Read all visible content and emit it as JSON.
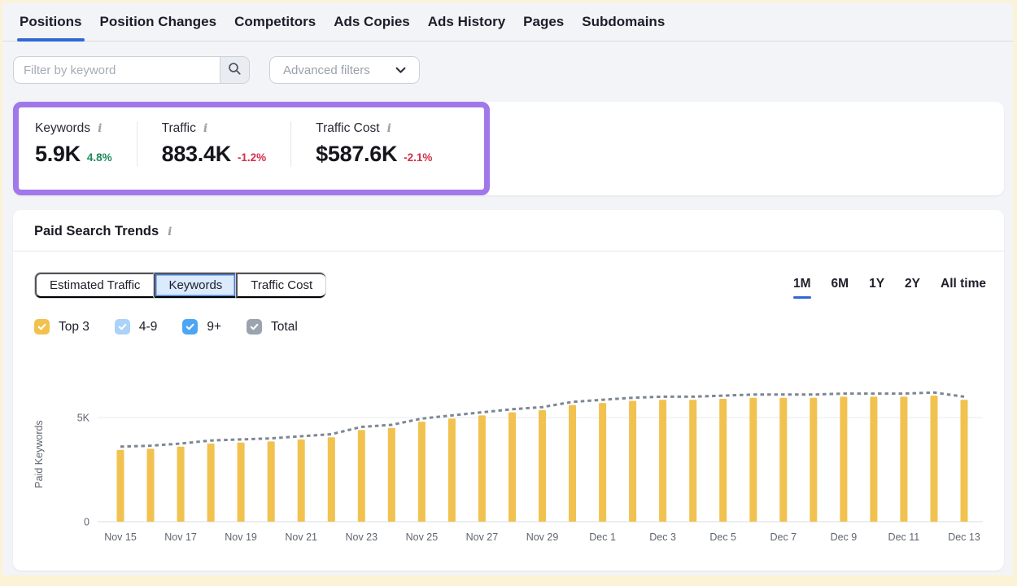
{
  "page": {
    "background": "#f3f4f7",
    "frame_color": "#fcf2d6"
  },
  "icons": {
    "info": "i"
  },
  "nav": {
    "active_color": "#3268d6",
    "tabs": [
      {
        "label": "Positions",
        "active": true
      },
      {
        "label": "Position Changes",
        "active": false
      },
      {
        "label": "Competitors",
        "active": false
      },
      {
        "label": "Ads Copies",
        "active": false
      },
      {
        "label": "Ads History",
        "active": false
      },
      {
        "label": "Pages",
        "active": false
      },
      {
        "label": "Subdomains",
        "active": false
      }
    ]
  },
  "filter_bar": {
    "keyword_placeholder": "Filter by keyword",
    "advanced_filters_label": "Advanced filters"
  },
  "metrics": {
    "highlight_color": "#a178e9",
    "items": [
      {
        "label": "Keywords",
        "value": "5.9K",
        "delta": "4.8%",
        "delta_color": "#1f8a5b"
      },
      {
        "label": "Traffic",
        "value": "883.4K",
        "delta": "-1.2%",
        "delta_color": "#d2304a"
      },
      {
        "label": "Traffic Cost",
        "value": "$587.6K",
        "delta": "-2.1%",
        "delta_color": "#d2304a"
      }
    ]
  },
  "trends": {
    "title": "Paid Search Trends",
    "metric_toggle": [
      {
        "label": "Estimated Traffic",
        "selected": false
      },
      {
        "label": "Keywords",
        "selected": true
      },
      {
        "label": "Traffic Cost",
        "selected": false
      }
    ],
    "time_ranges": [
      {
        "label": "1M",
        "active": true
      },
      {
        "label": "6M",
        "active": false
      },
      {
        "label": "1Y",
        "active": false
      },
      {
        "label": "2Y",
        "active": false
      },
      {
        "label": "All time",
        "active": false
      }
    ],
    "legend": [
      {
        "label": "Top 3",
        "color": "#f1c24f",
        "checked": true
      },
      {
        "label": "4-9",
        "color": "#abd2f8",
        "checked": true
      },
      {
        "label": "9+",
        "color": "#4da5f5",
        "checked": true
      },
      {
        "label": "Total",
        "color": "#9aa3ae",
        "checked": true
      }
    ]
  },
  "chart_data": {
    "type": "bar",
    "title": "Paid Search Trends",
    "xlabel": "",
    "ylabel": "Paid Keywords",
    "ylim": [
      0,
      7000
    ],
    "grid": "horizontal",
    "legend_position": "top-left-above-chart",
    "yticks": [
      {
        "value": 0,
        "label": "0"
      },
      {
        "value": 5000,
        "label": "5K"
      }
    ],
    "x_tick_every": 2,
    "categories": [
      "Nov 15",
      "Nov 16",
      "Nov 17",
      "Nov 18",
      "Nov 19",
      "Nov 20",
      "Nov 21",
      "Nov 22",
      "Nov 23",
      "Nov 24",
      "Nov 25",
      "Nov 26",
      "Nov 27",
      "Nov 28",
      "Nov 29",
      "Nov 30",
      "Dec 1",
      "Dec 2",
      "Dec 3",
      "Dec 4",
      "Dec 5",
      "Dec 6",
      "Dec 7",
      "Dec 8",
      "Dec 9",
      "Dec 10",
      "Dec 11",
      "Dec 12",
      "Dec 13"
    ],
    "series": [
      {
        "name": "Top 3",
        "type": "bar",
        "color": "#f1c24f",
        "values": [
          3450,
          3500,
          3600,
          3750,
          3800,
          3850,
          3950,
          4050,
          4400,
          4500,
          4800,
          4950,
          5100,
          5250,
          5350,
          5600,
          5700,
          5800,
          5850,
          5850,
          5900,
          5950,
          5950,
          5950,
          6000,
          6000,
          6000,
          6050,
          5850
        ]
      },
      {
        "name": "Total",
        "type": "dashed_line",
        "color": "#7d8694",
        "values": [
          3600,
          3650,
          3750,
          3900,
          3950,
          4000,
          4100,
          4200,
          4550,
          4650,
          4950,
          5100,
          5250,
          5400,
          5500,
          5750,
          5850,
          5950,
          6000,
          6000,
          6050,
          6100,
          6100,
          6100,
          6150,
          6150,
          6150,
          6200,
          6000
        ]
      }
    ]
  }
}
